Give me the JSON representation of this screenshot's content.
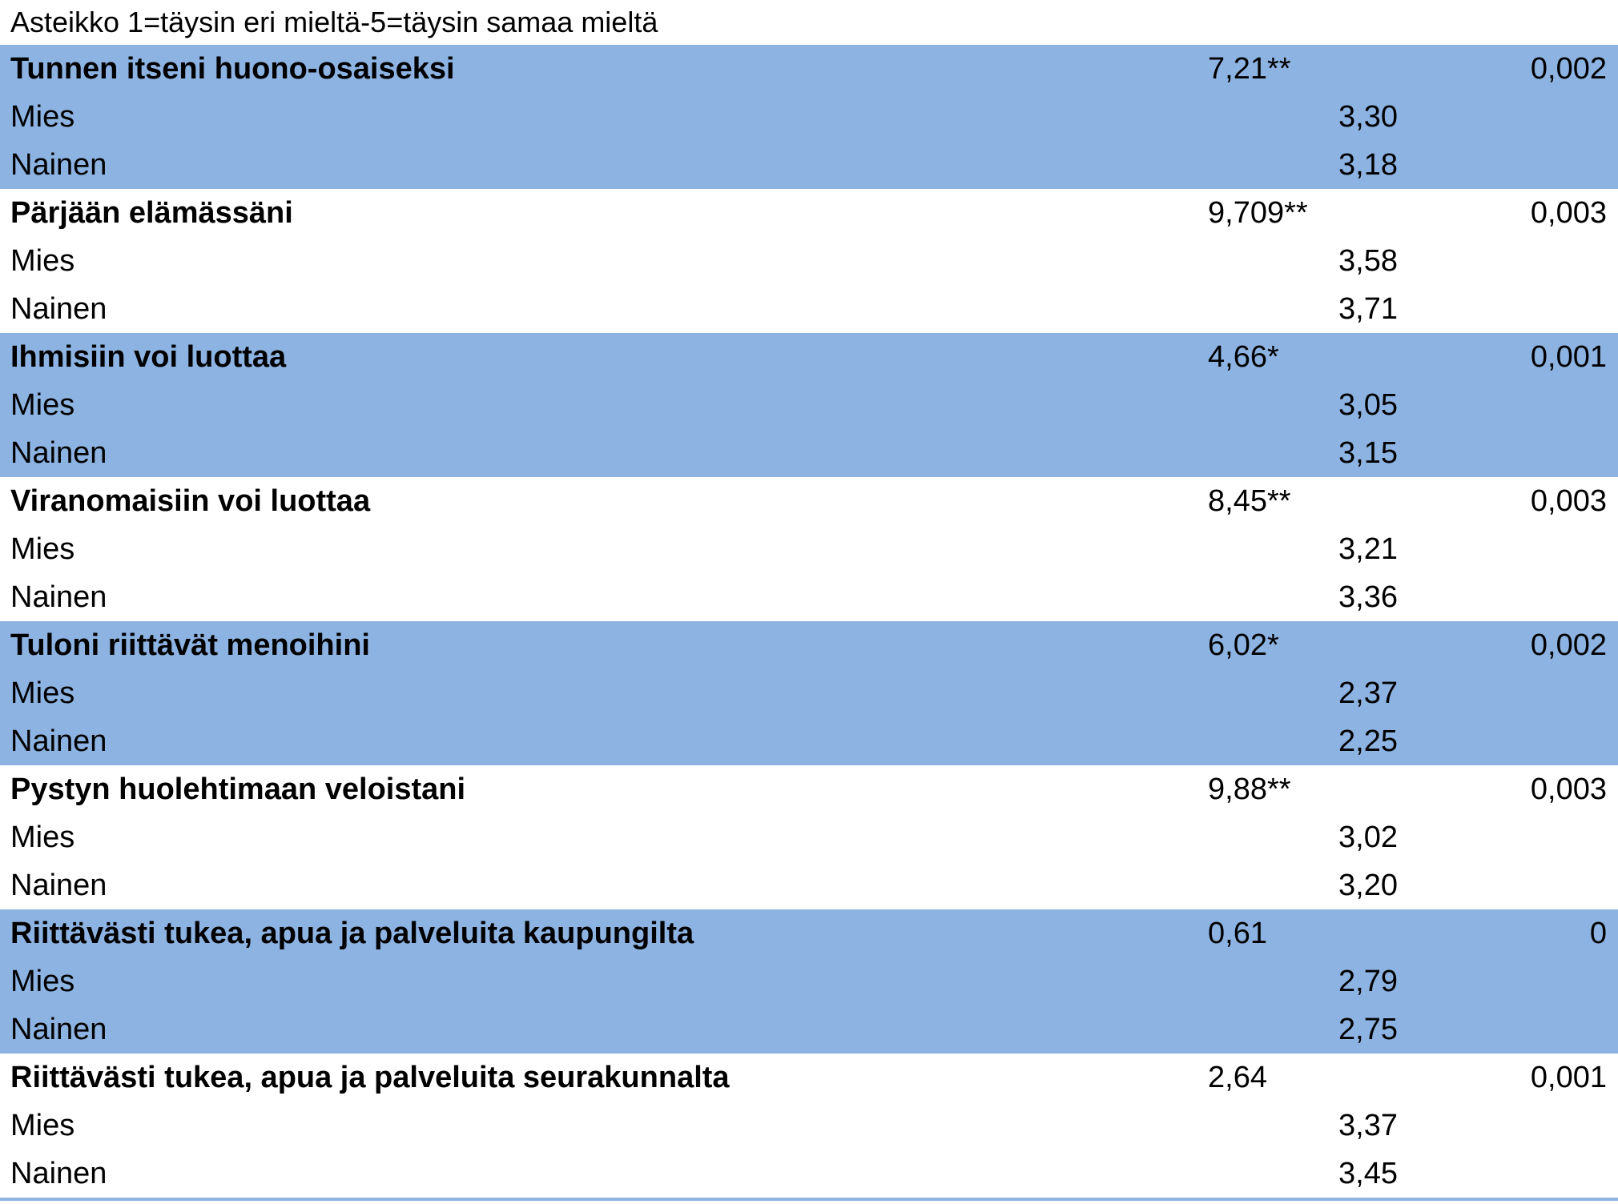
{
  "caption": "Asteikko 1=täysin eri mieltä-5=täysin samaa mieltä",
  "items": [
    {
      "label": "Tunnen itseni huono-osaiseksi",
      "f": "7,21**",
      "p": "0,002",
      "rows": [
        {
          "label": "Mies",
          "mean": "3,30"
        },
        {
          "label": "Nainen",
          "mean": "3,18"
        }
      ]
    },
    {
      "label": "Pärjään elämässäni",
      "f": "9,709**",
      "p": "0,003",
      "rows": [
        {
          "label": "Mies",
          "mean": "3,58"
        },
        {
          "label": "Nainen",
          "mean": "3,71"
        }
      ]
    },
    {
      "label": "Ihmisiin voi luottaa",
      "f": "4,66*",
      "p": "0,001",
      "rows": [
        {
          "label": "Mies",
          "mean": "3,05"
        },
        {
          "label": "Nainen",
          "mean": "3,15"
        }
      ]
    },
    {
      "label": "Viranomaisiin voi luottaa",
      "f": "8,45**",
      "p": "0,003",
      "rows": [
        {
          "label": "Mies",
          "mean": "3,21"
        },
        {
          "label": "Nainen",
          "mean": "3,36"
        }
      ]
    },
    {
      "label": "Tuloni riittävät menoihini",
      "f": "6,02*",
      "p": "0,002",
      "rows": [
        {
          "label": "Mies",
          "mean": "2,37"
        },
        {
          "label": "Nainen",
          "mean": "2,25"
        }
      ]
    },
    {
      "label": "Pystyn huolehtimaan veloistani",
      "f": "9,88**",
      "p": "0,003",
      "rows": [
        {
          "label": "Mies",
          "mean": "3,02"
        },
        {
          "label": "Nainen",
          "mean": "3,20"
        }
      ]
    },
    {
      "label": "Riittävästi tukea, apua ja palveluita kaupungilta",
      "f": "0,61",
      "p": "0",
      "rows": [
        {
          "label": "Mies",
          "mean": "2,79"
        },
        {
          "label": "Nainen",
          "mean": "2,75"
        }
      ]
    },
    {
      "label": "Riittävästi tukea, apua ja palveluita seurakunnalta",
      "f": "2,64",
      "p": "0,001",
      "rows": [
        {
          "label": "Mies",
          "mean": "3,37"
        },
        {
          "label": "Nainen",
          "mean": "3,45"
        }
      ]
    }
  ],
  "colors": {
    "band": "#8db3e2",
    "background": "#ffffff",
    "text": "#000000"
  }
}
